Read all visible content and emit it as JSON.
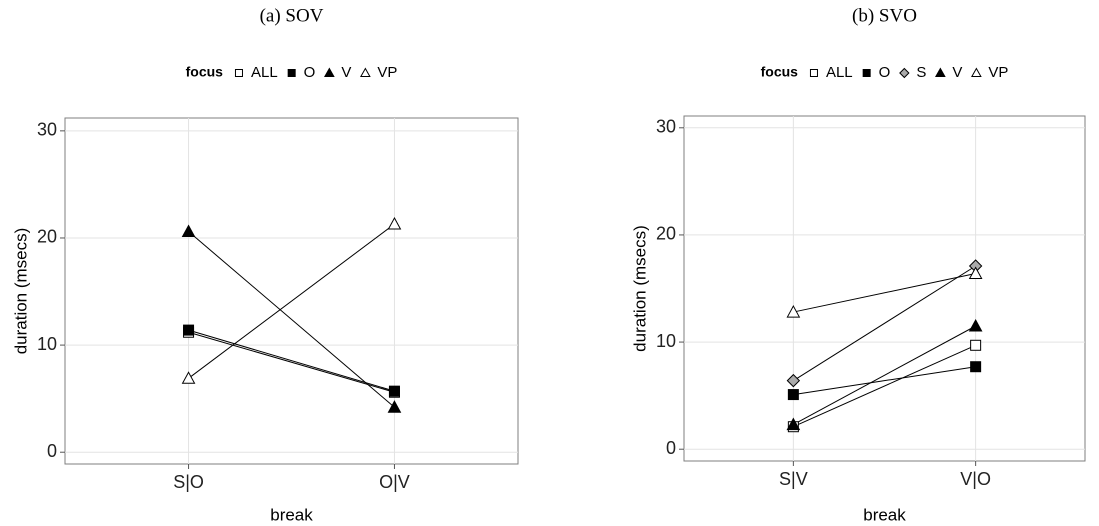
{
  "chart_data": [
    {
      "type": "line",
      "title": "(a) SOV",
      "x_label": "break",
      "y_label": "duration (msecs)",
      "legend_title": "focus",
      "categories": [
        "S|O",
        "O|V"
      ],
      "ylim": [
        -1.1,
        31.2
      ],
      "yticks": [
        0,
        10,
        20,
        30
      ],
      "grid": true,
      "series": [
        {
          "name": "ALL",
          "marker": "square",
          "color": "#ffffff",
          "values": [
            11.2,
            5.6
          ]
        },
        {
          "name": "O",
          "marker": "square",
          "color": "#000000",
          "values": [
            11.4,
            5.7
          ]
        },
        {
          "name": "V",
          "marker": "triangle",
          "color": "#000000",
          "values": [
            20.6,
            4.2
          ]
        },
        {
          "name": "VP",
          "marker": "triangle",
          "color": "#ffffff",
          "values": [
            6.9,
            21.3
          ]
        }
      ]
    },
    {
      "type": "line",
      "title": "(b) SVO",
      "x_label": "break",
      "y_label": "duration (msecs)",
      "legend_title": "focus",
      "categories": [
        "S|V",
        "V|O"
      ],
      "ylim": [
        -1.1,
        31.1
      ],
      "yticks": [
        0,
        10,
        20,
        30
      ],
      "grid": true,
      "series": [
        {
          "name": "ALL",
          "marker": "square",
          "color": "#ffffff",
          "values": [
            2.1,
            9.7
          ]
        },
        {
          "name": "O",
          "marker": "square",
          "color": "#000000",
          "values": [
            5.1,
            7.7
          ]
        },
        {
          "name": "S",
          "marker": "diamond",
          "color": "#aaaaaa",
          "values": [
            6.4,
            17.1
          ]
        },
        {
          "name": "V",
          "marker": "triangle",
          "color": "#000000",
          "values": [
            2.3,
            11.5
          ]
        },
        {
          "name": "VP",
          "marker": "triangle",
          "color": "#ffffff",
          "values": [
            12.8,
            16.4
          ]
        }
      ]
    }
  ]
}
